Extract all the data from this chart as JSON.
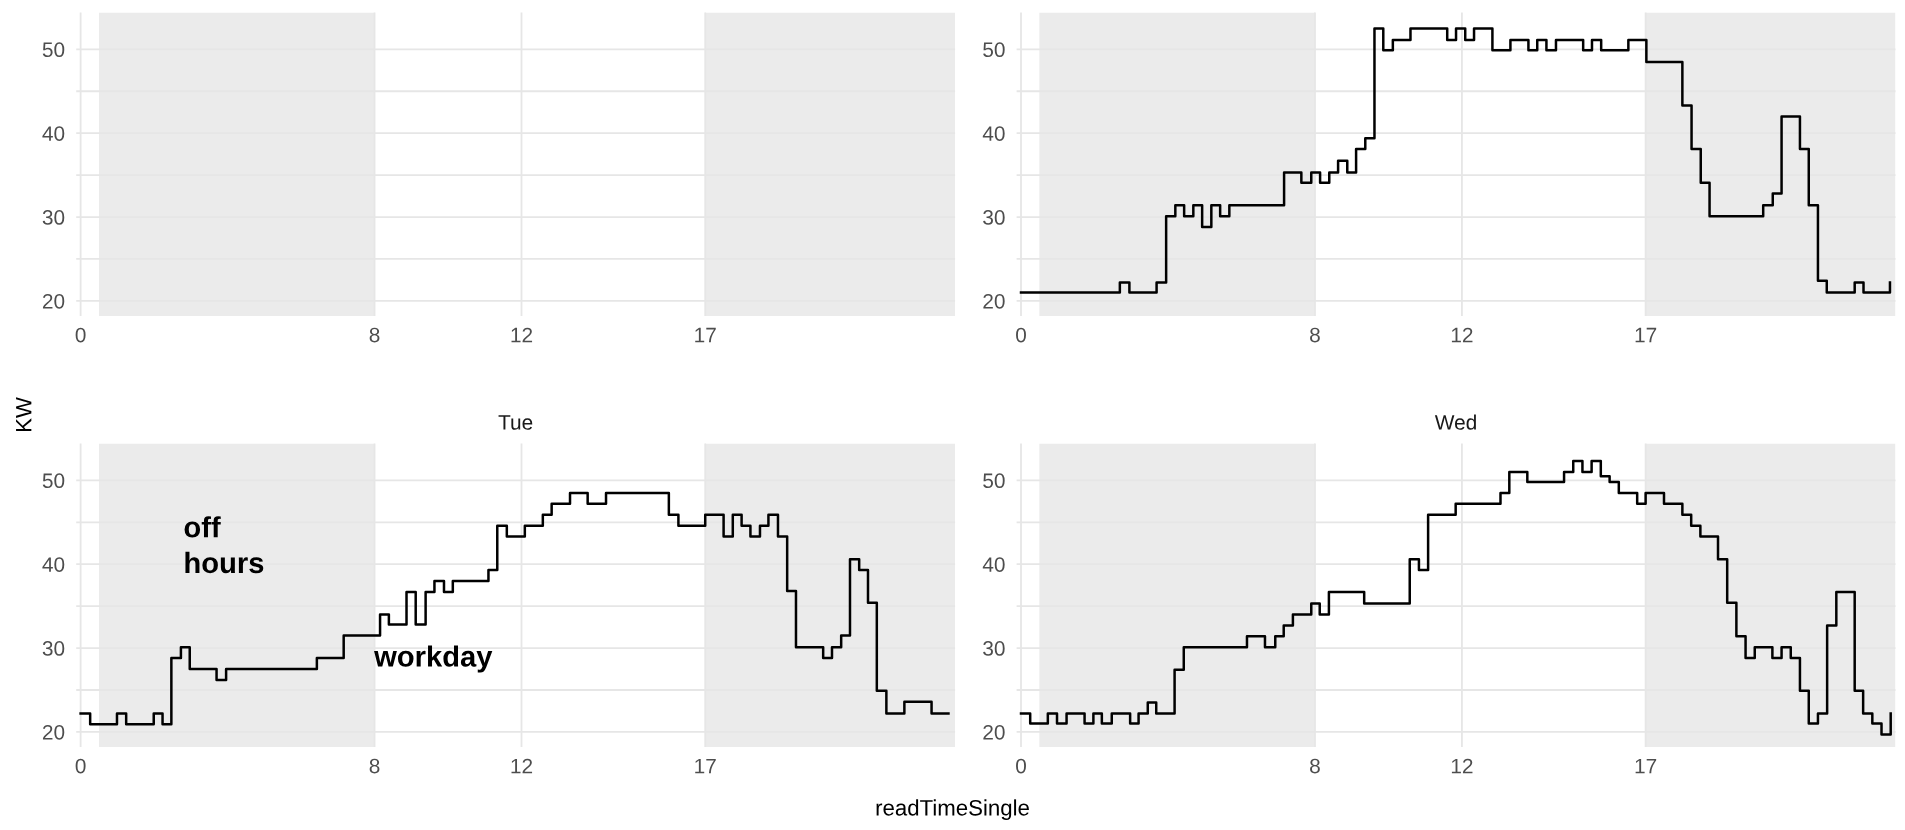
{
  "chart_data": [
    {
      "type": "step",
      "ylabel": "KW",
      "color": "#000000",
      "xlim": [
        -0.12,
        23.8
      ],
      "ylim": [
        18.2,
        54.4
      ],
      "xticks": [
        0,
        8,
        12,
        17
      ],
      "yticks": [
        20,
        {
          "value": 25,
          "label": null
        },
        30,
        {
          "value": 35,
          "label": null
        },
        40,
        {
          "value": 45,
          "label": null
        },
        50
      ],
      "grid": true,
      "bands": [
        {
          "axis": "x",
          "from": 0.5,
          "to": 8,
          "color": "#ebebeb"
        },
        {
          "axis": "x",
          "from": 17,
          "to": 23.8,
          "color": "#ebebeb"
        }
      ]
    },
    {
      "type": "step",
      "x": [
        0,
        2.69,
        2.95,
        3.69,
        3.95,
        4.2,
        4.44,
        4.69,
        4.93,
        5.18,
        5.42,
        5.67,
        7.16,
        7.63,
        7.9,
        8.14,
        8.39,
        8.63,
        8.88,
        9.12,
        9.37,
        9.62,
        9.86,
        10.12,
        10.6,
        11.6,
        11.84,
        12.09,
        12.33,
        12.83,
        13.32,
        13.81,
        14.05,
        14.3,
        14.56,
        15.3,
        15.54,
        15.79,
        16.53,
        17.02,
        18.0,
        18.25,
        18.5,
        18.74,
        20.2,
        20.46,
        20.7,
        21.2,
        21.44,
        21.69,
        21.93,
        22.69,
        22.93,
        23.65
      ],
      "values": [
        21,
        22.2,
        21,
        22.2,
        30.1,
        31.4,
        30.1,
        31.4,
        28.8,
        31.4,
        30.1,
        31.4,
        35.3,
        34.1,
        35.3,
        34.1,
        35.3,
        36.7,
        35.3,
        38.1,
        39.4,
        52.5,
        49.9,
        51.1,
        52.5,
        51.1,
        52.5,
        51.1,
        52.5,
        49.9,
        51.1,
        49.9,
        51.1,
        49.9,
        51.1,
        49.9,
        51.1,
        49.9,
        51.1,
        48.5,
        43.3,
        38.1,
        34.1,
        30.1,
        31.4,
        32.8,
        42,
        38.1,
        31.4,
        22.4,
        21,
        22.2,
        21,
        22.2
      ],
      "color": "#000000",
      "xlim": [
        -0.12,
        23.8
      ],
      "ylim": [
        18.2,
        54.4
      ],
      "xticks": [
        0,
        8,
        12,
        17
      ],
      "yticks": [
        20,
        {
          "value": 25,
          "label": null
        },
        30,
        {
          "value": 35,
          "label": null
        },
        40,
        {
          "value": 45,
          "label": null
        },
        50
      ],
      "grid": true,
      "bands": [
        {
          "axis": "x",
          "from": 0.5,
          "to": 8,
          "color": "#ebebeb"
        },
        {
          "axis": "x",
          "from": 17,
          "to": 23.8,
          "color": "#ebebeb"
        }
      ]
    },
    {
      "type": "step",
      "title": "Tue",
      "xlabel": "readTimeSingle",
      "x": [
        0,
        0.26,
        0.99,
        1.24,
        1.99,
        2.23,
        2.47,
        2.73,
        2.97,
        3.7,
        3.96,
        6.43,
        7.16,
        8.15,
        8.39,
        8.87,
        9.12,
        9.39,
        9.63,
        9.89,
        10.13,
        11.1,
        11.34,
        11.6,
        12.09,
        12.58,
        12.82,
        13.32,
        13.8,
        14.3,
        16.01,
        16.27,
        17.0,
        17.5,
        17.75,
        17.99,
        18.23,
        18.49,
        18.72,
        18.98,
        19.23,
        19.47,
        20.21,
        20.45,
        20.7,
        20.94,
        21.19,
        21.43,
        21.67,
        21.93,
        22.42,
        23.16,
        23.62
      ],
      "values": [
        22.2,
        20.9,
        22.2,
        20.9,
        22.2,
        20.9,
        28.8,
        30.1,
        27.5,
        26.2,
        27.5,
        28.8,
        31.5,
        34.0,
        32.8,
        36.7,
        32.8,
        36.7,
        38.0,
        36.7,
        38.0,
        39.3,
        44.6,
        43.3,
        44.6,
        45.9,
        47.2,
        48.5,
        47.2,
        48.5,
        45.9,
        44.6,
        45.9,
        43.3,
        45.9,
        44.6,
        43.3,
        44.6,
        45.9,
        43.3,
        36.8,
        30.1,
        28.8,
        30.1,
        31.5,
        40.6,
        39.3,
        35.4,
        24.9,
        22.2,
        23.6,
        22.2,
        22.2
      ],
      "color": "#000000",
      "xlim": [
        -0.12,
        23.8
      ],
      "ylim": [
        18.2,
        54.4
      ],
      "xticks": [
        0,
        8,
        12,
        17
      ],
      "yticks": [
        20,
        {
          "value": 25,
          "label": null
        },
        30,
        {
          "value": 35,
          "label": null
        },
        40,
        {
          "value": 45,
          "label": null
        },
        50
      ],
      "grid": true,
      "bands": [
        {
          "axis": "x",
          "from": 0.5,
          "to": 8,
          "color": "#ebebeb"
        },
        {
          "axis": "x",
          "from": 17,
          "to": 23.8,
          "color": "#ebebeb"
        }
      ],
      "annotations": [
        "off\nhours",
        "workday"
      ]
    },
    {
      "type": "step",
      "title": "Wed",
      "x": [
        0,
        0.25,
        0.73,
        0.98,
        1.24,
        1.73,
        1.97,
        2.2,
        2.47,
        2.97,
        3.2,
        3.45,
        3.68,
        4.18,
        4.43,
        6.15,
        6.64,
        6.92,
        7.15,
        7.4,
        7.9,
        8.13,
        8.38,
        9.34,
        10.58,
        10.83,
        11.08,
        11.83,
        13.05,
        13.29,
        13.78,
        14.78,
        15.03,
        15.28,
        15.53,
        15.78,
        16.02,
        16.27,
        16.77,
        17.0,
        17.5,
        18.0,
        18.24,
        18.49,
        18.97,
        19.22,
        19.47,
        19.72,
        19.97,
        20.45,
        20.7,
        20.95,
        21.2,
        21.44,
        21.69,
        21.94,
        22.19,
        22.69,
        22.92,
        23.17,
        23.42,
        23.67
      ],
      "values": [
        22.2,
        21.0,
        22.2,
        21.0,
        22.2,
        21.0,
        22.2,
        21.0,
        22.2,
        21.0,
        22.2,
        23.5,
        22.2,
        27.4,
        30.1,
        31.4,
        30.1,
        31.4,
        32.7,
        34.0,
        35.3,
        34.0,
        36.7,
        35.3,
        40.6,
        39.3,
        45.9,
        47.2,
        48.5,
        51.0,
        49.8,
        51.0,
        52.3,
        51.0,
        52.3,
        50.5,
        49.8,
        48.5,
        47.2,
        48.5,
        47.2,
        45.9,
        44.6,
        43.3,
        40.6,
        35.4,
        31.4,
        28.8,
        30.1,
        28.8,
        30.1,
        28.8,
        24.9,
        21.0,
        22.2,
        32.7,
        36.7,
        24.9,
        22.2,
        21.0,
        19.7,
        22.2
      ],
      "color": "#000000",
      "xlim": [
        -0.12,
        23.8
      ],
      "ylim": [
        18.2,
        54.4
      ],
      "xticks": [
        0,
        8,
        12,
        17
      ],
      "yticks": [
        20,
        {
          "value": 25,
          "label": null
        },
        30,
        {
          "value": 35,
          "label": null
        },
        40,
        {
          "value": 45,
          "label": null
        },
        50
      ],
      "grid": true,
      "bands": [
        {
          "axis": "x",
          "from": 0.5,
          "to": 8,
          "color": "#ebebeb"
        },
        {
          "axis": "x",
          "from": 17,
          "to": 23.8,
          "color": "#ebebeb"
        }
      ]
    }
  ]
}
